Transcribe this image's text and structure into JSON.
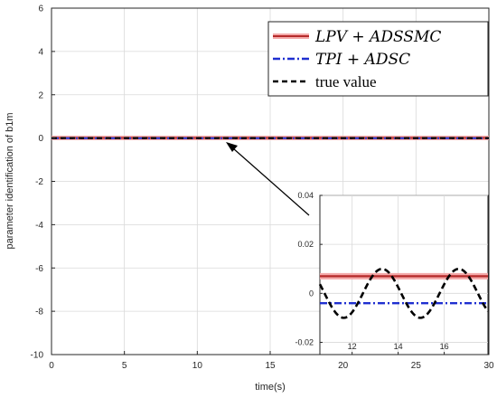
{
  "chart_data": {
    "type": "line",
    "xlabel": "time(s)",
    "ylabel": "parameter identification of b1m",
    "xlim": [
      0,
      30
    ],
    "ylim": [
      -10,
      6
    ],
    "xticks": [
      "0",
      "5",
      "10",
      "15",
      "20",
      "25",
      "30"
    ],
    "yticks": [
      "6",
      "4",
      "2",
      "0",
      "-2",
      "-4",
      "-6",
      "-8",
      "-10"
    ],
    "grid": true,
    "legend_position": "top-right",
    "series": [
      {
        "name": "LPV + ADSSMC",
        "color": "#b52a2a",
        "style": "solid",
        "x": [
          0,
          30
        ],
        "y": [
          0.007,
          0.007
        ]
      },
      {
        "name": "TPI + ADSC",
        "color": "#1f2fd0",
        "style": "dashdot",
        "x": [
          0,
          30
        ],
        "y": [
          -0.004,
          -0.004
        ]
      },
      {
        "name": "true value",
        "color": "#000000",
        "style": "dashed",
        "x": [
          10,
          11,
          12,
          13,
          14,
          15,
          16,
          17,
          18,
          19,
          20,
          21
        ],
        "y": [
          0.005,
          -0.003,
          -0.009,
          -0.007,
          0.002,
          0.01,
          0.005,
          -0.003,
          -0.009,
          -0.007,
          0.002,
          0.01
        ]
      }
    ],
    "annotation": "arrow from inset to zoomed region near t=12",
    "inset": {
      "xlim": [
        10.6,
        17.9
      ],
      "ylim": [
        -0.025,
        0.04
      ],
      "xticks": [
        "12",
        "14",
        "16"
      ],
      "yticks": [
        "0.04",
        "0.02",
        "0",
        "-0.02"
      ]
    }
  },
  "colors": {
    "lpv": "#b52a2a",
    "lpv_band": "#f4a9a9",
    "tpi": "#1f2fd0",
    "true": "#000000",
    "grid": "#d9d9d9"
  }
}
